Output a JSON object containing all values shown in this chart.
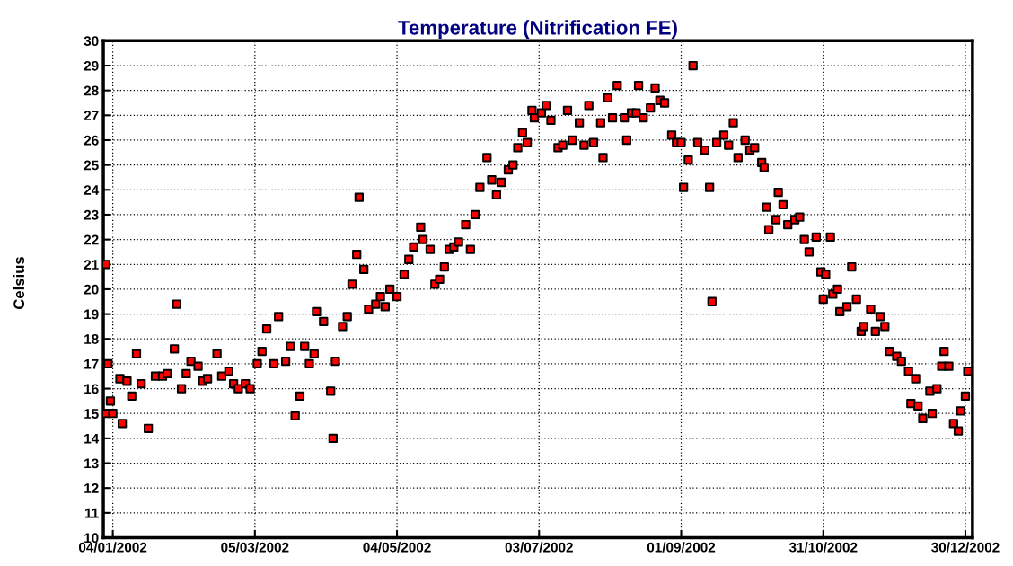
{
  "chart_data": {
    "type": "scatter",
    "title": "Temperature (Nitrification FE)",
    "ylabel": "Celsius",
    "marker": "square",
    "grid": true,
    "legend": false,
    "xlim": [
      "2001-12-31",
      "2003-01-02"
    ],
    "xticks": [
      {
        "value": "2002-01-04",
        "label": "04/01/2002"
      },
      {
        "value": "2002-03-05",
        "label": "05/03/2002"
      },
      {
        "value": "2002-05-04",
        "label": "04/05/2002"
      },
      {
        "value": "2002-07-03",
        "label": "03/07/2002"
      },
      {
        "value": "2002-09-01",
        "label": "01/09/2002"
      },
      {
        "value": "2002-10-31",
        "label": "31/10/2002"
      },
      {
        "value": "2002-12-30",
        "label": "30/12/2002"
      }
    ],
    "ylim": [
      10,
      30
    ],
    "yticks": [
      10,
      11,
      12,
      13,
      14,
      15,
      16,
      17,
      18,
      19,
      20,
      21,
      22,
      23,
      24,
      25,
      26,
      27,
      28,
      29,
      30
    ],
    "series": [
      {
        "color": "#ff0000",
        "x": [
          "2002-01-01",
          "2002-01-01",
          "2002-01-02",
          "2002-01-03",
          "2002-01-04",
          "2002-01-07",
          "2002-01-08",
          "2002-01-10",
          "2002-01-12",
          "2002-01-14",
          "2002-01-16",
          "2002-01-19",
          "2002-01-22",
          "2002-01-25",
          "2002-01-27",
          "2002-01-30",
          "2002-01-31",
          "2002-02-02",
          "2002-02-04",
          "2002-02-06",
          "2002-02-09",
          "2002-02-11",
          "2002-02-13",
          "2002-02-17",
          "2002-02-19",
          "2002-02-22",
          "2002-02-24",
          "2002-02-26",
          "2002-03-01",
          "2002-03-03",
          "2002-03-06",
          "2002-03-08",
          "2002-03-10",
          "2002-03-13",
          "2002-03-15",
          "2002-03-18",
          "2002-03-20",
          "2002-03-22",
          "2002-03-24",
          "2002-03-26",
          "2002-03-28",
          "2002-03-30",
          "2002-03-31",
          "2002-04-03",
          "2002-04-06",
          "2002-04-07",
          "2002-04-08",
          "2002-04-11",
          "2002-04-13",
          "2002-04-15",
          "2002-04-17",
          "2002-04-18",
          "2002-04-20",
          "2002-04-22",
          "2002-04-25",
          "2002-04-27",
          "2002-04-29",
          "2002-05-01",
          "2002-05-04",
          "2002-05-07",
          "2002-05-09",
          "2002-05-11",
          "2002-05-14",
          "2002-05-15",
          "2002-05-18",
          "2002-05-20",
          "2002-05-22",
          "2002-05-24",
          "2002-05-26",
          "2002-05-28",
          "2002-05-30",
          "2002-06-02",
          "2002-06-04",
          "2002-06-06",
          "2002-06-08",
          "2002-06-11",
          "2002-06-13",
          "2002-06-15",
          "2002-06-17",
          "2002-06-20",
          "2002-06-22",
          "2002-06-24",
          "2002-06-26",
          "2002-06-28",
          "2002-06-30",
          "2002-07-01",
          "2002-07-04",
          "2002-07-06",
          "2002-07-08",
          "2002-07-11",
          "2002-07-13",
          "2002-07-15",
          "2002-07-17",
          "2002-07-20",
          "2002-07-22",
          "2002-07-24",
          "2002-07-26",
          "2002-07-29",
          "2002-07-30",
          "2002-08-01",
          "2002-08-03",
          "2002-08-05",
          "2002-08-08",
          "2002-08-09",
          "2002-08-11",
          "2002-08-13",
          "2002-08-14",
          "2002-08-16",
          "2002-08-19",
          "2002-08-21",
          "2002-08-23",
          "2002-08-25",
          "2002-08-28",
          "2002-08-30",
          "2002-09-01",
          "2002-09-02",
          "2002-09-04",
          "2002-09-06",
          "2002-09-08",
          "2002-09-11",
          "2002-09-13",
          "2002-09-14",
          "2002-09-16",
          "2002-09-19",
          "2002-09-21",
          "2002-09-23",
          "2002-09-25",
          "2002-09-28",
          "2002-09-30",
          "2002-10-02",
          "2002-10-05",
          "2002-10-06",
          "2002-10-07",
          "2002-10-08",
          "2002-10-11",
          "2002-10-12",
          "2002-10-14",
          "2002-10-16",
          "2002-10-19",
          "2002-10-21",
          "2002-10-23",
          "2002-10-25",
          "2002-10-28",
          "2002-10-30",
          "2002-10-31",
          "2002-11-01",
          "2002-11-03",
          "2002-11-04",
          "2002-11-06",
          "2002-11-07",
          "2002-11-10",
          "2002-11-12",
          "2002-11-14",
          "2002-11-16",
          "2002-11-17",
          "2002-11-20",
          "2002-11-22",
          "2002-11-24",
          "2002-11-26",
          "2002-11-28",
          "2002-12-01",
          "2002-12-03",
          "2002-12-06",
          "2002-12-07",
          "2002-12-09",
          "2002-12-10",
          "2002-12-12",
          "2002-12-15",
          "2002-12-16",
          "2002-12-18",
          "2002-12-20",
          "2002-12-21",
          "2002-12-23",
          "2002-12-25",
          "2002-12-27",
          "2002-12-28",
          "2002-12-30",
          "2002-12-31"
        ],
        "values": [
          21.0,
          15.0,
          17.0,
          15.5,
          15.0,
          16.4,
          14.6,
          16.3,
          15.7,
          17.4,
          16.2,
          14.4,
          16.5,
          16.5,
          16.6,
          17.6,
          19.4,
          16.0,
          16.6,
          17.1,
          16.9,
          16.3,
          16.4,
          17.4,
          16.5,
          16.7,
          16.2,
          16.0,
          16.2,
          16.0,
          17.0,
          17.5,
          18.4,
          17.0,
          18.9,
          17.1,
          17.7,
          14.9,
          15.7,
          17.7,
          17.0,
          17.4,
          19.1,
          18.7,
          15.9,
          14.0,
          17.1,
          18.5,
          18.9,
          20.2,
          21.4,
          23.7,
          20.8,
          19.2,
          19.4,
          19.7,
          19.3,
          20.0,
          19.7,
          20.6,
          21.2,
          21.7,
          22.5,
          22.0,
          21.6,
          20.2,
          20.4,
          20.9,
          21.6,
          21.7,
          21.9,
          22.6,
          21.6,
          23.0,
          24.1,
          25.3,
          24.4,
          23.8,
          24.3,
          24.8,
          25.0,
          25.7,
          26.3,
          25.9,
          27.2,
          26.9,
          27.1,
          27.4,
          26.8,
          25.7,
          25.8,
          27.2,
          26.0,
          26.7,
          25.8,
          27.4,
          25.9,
          26.7,
          25.3,
          27.7,
          26.9,
          28.2,
          26.9,
          26.0,
          27.1,
          27.1,
          28.2,
          26.9,
          27.3,
          28.1,
          27.6,
          27.5,
          26.2,
          25.9,
          25.9,
          24.1,
          25.2,
          29.0,
          25.9,
          25.6,
          24.1,
          19.5,
          25.9,
          26.2,
          25.8,
          26.7,
          25.3,
          26.0,
          25.6,
          25.7,
          25.1,
          24.9,
          23.3,
          22.4,
          22.8,
          23.9,
          23.4,
          22.6,
          22.8,
          22.9,
          22.0,
          21.5,
          22.1,
          20.7,
          19.6,
          20.6,
          22.1,
          19.8,
          20.0,
          19.1,
          19.3,
          20.9,
          19.6,
          18.3,
          18.5,
          19.2,
          18.3,
          18.9,
          18.5,
          17.5,
          17.3,
          17.1,
          16.7,
          15.4,
          16.4,
          15.3,
          14.8,
          15.9,
          15.0,
          16.0,
          16.9,
          17.5,
          16.9,
          14.6,
          14.3,
          15.1,
          15.7,
          16.7
        ]
      }
    ]
  }
}
